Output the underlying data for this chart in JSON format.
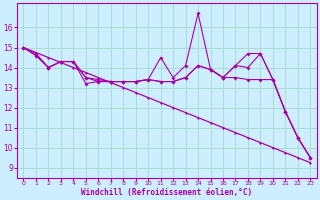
{
  "xlabel": "Windchill (Refroidissement éolien,°C)",
  "bg_color": "#cceeff",
  "grid_color": "#aaddcc",
  "line_color": "#aa00aa",
  "x_values": [
    0,
    1,
    2,
    3,
    4,
    5,
    6,
    7,
    8,
    9,
    10,
    11,
    12,
    13,
    14,
    15,
    16,
    17,
    18,
    19,
    20,
    21,
    22,
    23
  ],
  "series1": [
    15.0,
    14.6,
    14.0,
    14.3,
    14.3,
    13.2,
    13.3,
    13.3,
    13.3,
    13.3,
    13.4,
    14.5,
    13.5,
    14.1,
    16.7,
    13.9,
    13.5,
    14.1,
    14.0,
    14.7,
    13.4,
    11.8,
    10.5,
    9.5
  ],
  "series2": [
    15.0,
    14.6,
    14.0,
    14.3,
    14.3,
    13.5,
    13.3,
    13.3,
    13.3,
    13.3,
    13.4,
    13.3,
    13.3,
    13.5,
    14.1,
    13.9,
    13.5,
    13.5,
    13.4,
    13.4,
    13.4,
    11.8,
    10.5,
    9.5
  ],
  "series3": [
    15.0,
    14.7,
    14.0,
    14.3,
    14.3,
    13.5,
    13.4,
    13.3,
    13.3,
    13.3,
    13.4,
    13.3,
    13.3,
    13.5,
    14.1,
    13.9,
    13.5,
    14.1,
    14.7,
    14.7,
    13.4,
    11.8,
    10.5,
    9.5
  ],
  "series_trend": [
    15.0,
    14.75,
    14.5,
    14.25,
    14.0,
    13.75,
    13.5,
    13.25,
    13.0,
    12.75,
    12.5,
    12.25,
    12.0,
    11.75,
    11.5,
    11.25,
    11.0,
    10.75,
    10.5,
    10.25,
    10.0,
    9.75,
    9.5,
    9.25
  ],
  "ylim": [
    8.5,
    17.2
  ],
  "xlim": [
    -0.5,
    23.5
  ],
  "yticks": [
    9,
    10,
    11,
    12,
    13,
    14,
    15,
    16
  ],
  "xticks": [
    0,
    1,
    2,
    3,
    4,
    5,
    6,
    7,
    8,
    9,
    10,
    11,
    12,
    13,
    14,
    15,
    16,
    17,
    18,
    19,
    20,
    21,
    22,
    23
  ]
}
